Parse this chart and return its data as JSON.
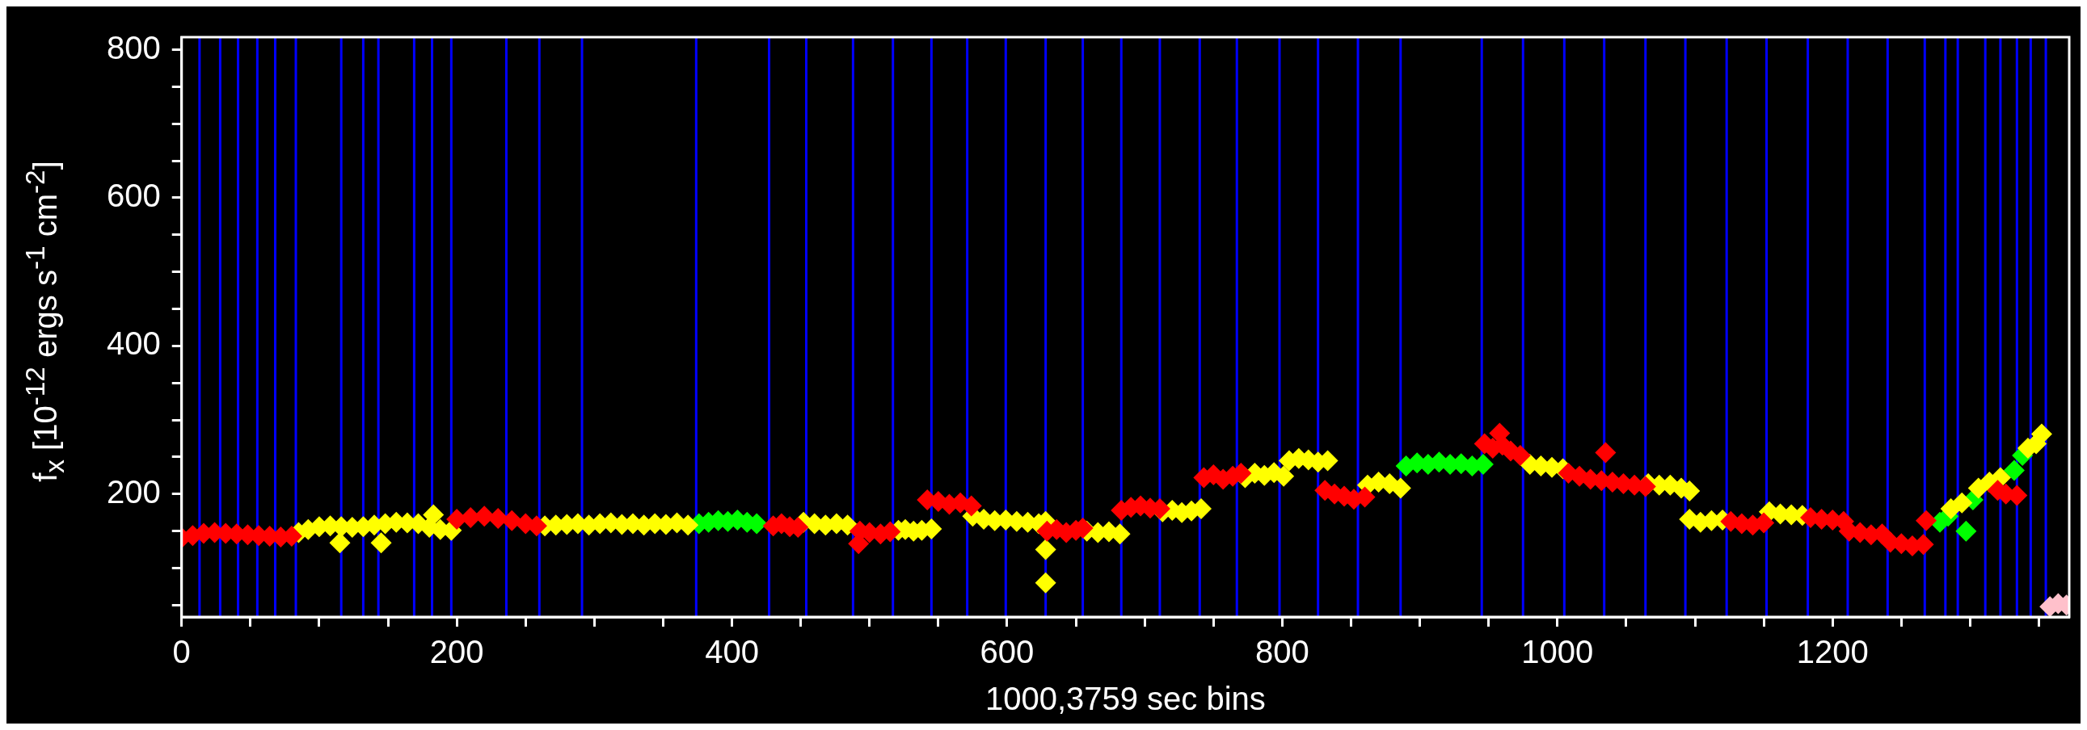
{
  "chart_data": {
    "type": "scatter",
    "xlabel": "1000,3759 sec bins",
    "ylabel": "f$_{x}$ [10$^{-12}$ ergs s$^{-1}$ cm$^{-2}$]",
    "xlim": [
      0,
      1372
    ],
    "ylim": [
      34,
      817
    ],
    "xticks": [
      0,
      {
        "value": 50,
        "label": null
      },
      200,
      {
        "value": 100,
        "label": null
      },
      {
        "value": 150,
        "label": null
      },
      {
        "value": 250,
        "label": null
      },
      {
        "value": 300,
        "label": null
      },
      {
        "value": 350,
        "label": null
      },
      400,
      {
        "value": 450,
        "label": null
      },
      {
        "value": 500,
        "label": null
      },
      {
        "value": 550,
        "label": null
      },
      600,
      {
        "value": 650,
        "label": null
      },
      {
        "value": 700,
        "label": null
      },
      {
        "value": 750,
        "label": null
      },
      800,
      {
        "value": 850,
        "label": null
      },
      {
        "value": 900,
        "label": null
      },
      {
        "value": 950,
        "label": null
      },
      1000,
      {
        "value": 1050,
        "label": null
      },
      {
        "value": 1100,
        "label": null
      },
      {
        "value": 1150,
        "label": null
      },
      1200,
      {
        "value": 1250,
        "label": null
      },
      {
        "value": 1300,
        "label": null
      },
      {
        "value": 1350,
        "label": null
      }
    ],
    "yticks": [
      {
        "value": 50,
        "label": null
      },
      {
        "value": 100,
        "label": null
      },
      {
        "value": 150,
        "label": null
      },
      200,
      {
        "value": 250,
        "label": null
      },
      {
        "value": 300,
        "label": null
      },
      {
        "value": 350,
        "label": null
      },
      400,
      {
        "value": 450,
        "label": null
      },
      {
        "value": 500,
        "label": null
      },
      {
        "value": 550,
        "label": null
      },
      600,
      {
        "value": 650,
        "label": null
      },
      {
        "value": 700,
        "label": null
      },
      {
        "value": 750,
        "label": null
      },
      800
    ],
    "grid": false,
    "legend": false,
    "marker": "diamond",
    "series": [
      {
        "color": "#ff0000",
        "x": [
          0,
          8,
          16,
          24,
          32,
          40,
          48,
          56,
          64,
          72,
          80,
          200,
          210,
          220,
          230,
          240,
          250,
          258,
          430,
          436,
          442,
          448,
          492,
          493,
          500,
          508,
          515,
          542,
          550,
          558,
          566,
          574,
          629,
          636,
          643,
          650,
          655,
          683,
          690,
          697,
          704,
          711,
          743,
          750,
          757,
          764,
          770,
          831,
          838,
          845,
          852,
          860,
          947,
          953,
          958,
          960,
          966,
          973,
          1008,
          1016,
          1024,
          1032,
          1035,
          1040,
          1048,
          1056,
          1064,
          1126,
          1134,
          1142,
          1150,
          1184,
          1192,
          1200,
          1208,
          1212,
          1220,
          1228,
          1236,
          1242,
          1250,
          1258,
          1266,
          1268,
          1320,
          1326,
          1334
        ],
        "values": [
          141,
          144,
          147,
          148,
          147,
          146,
          145,
          144,
          143,
          142,
          143,
          166,
          168,
          170,
          167,
          164,
          160,
          157,
          157,
          160,
          156,
          155,
          133,
          150,
          148,
          146,
          149,
          192,
          190,
          186,
          188,
          184,
          150,
          152,
          148,
          151,
          154,
          178,
          182,
          184,
          181,
          180,
          222,
          226,
          220,
          224,
          228,
          205,
          200,
          197,
          193,
          196,
          268,
          262,
          282,
          266,
          258,
          252,
          228,
          224,
          220,
          218,
          256,
          216,
          214,
          212,
          210,
          163,
          160,
          158,
          161,
          168,
          166,
          165,
          163,
          150,
          148,
          145,
          146,
          135,
          133,
          130,
          132,
          164,
          205,
          200,
          198
        ]
      },
      {
        "color": "#ffff00",
        "x": [
          85,
          92,
          100,
          108,
          115,
          116,
          124,
          132,
          140,
          145,
          148,
          156,
          164,
          172,
          180,
          183,
          188,
          196,
          264,
          272,
          280,
          288,
          296,
          304,
          312,
          320,
          328,
          336,
          344,
          352,
          360,
          368,
          452,
          460,
          468,
          476,
          484,
          521,
          526,
          532,
          538,
          545,
          575,
          583,
          591,
          599,
          607,
          615,
          623,
          628,
          628,
          628,
          658,
          666,
          674,
          682,
          713,
          720,
          727,
          734,
          741,
          773,
          780,
          787,
          794,
          801,
          805,
          812,
          819,
          826,
          833,
          862,
          870,
          878,
          886,
          980,
          988,
          996,
          1004,
          1066,
          1074,
          1082,
          1090,
          1096,
          1096,
          1104,
          1112,
          1120,
          1154,
          1162,
          1170,
          1178,
          1286,
          1294,
          1306,
          1314,
          1322,
          1342,
          1348,
          1352
        ],
        "values": [
          148,
          152,
          156,
          157,
          134,
          156,
          155,
          156,
          158,
          134,
          160,
          162,
          161,
          160,
          155,
          172,
          152,
          151,
          157,
          158,
          159,
          160,
          158,
          160,
          161,
          159,
          160,
          158,
          160,
          159,
          161,
          158,
          162,
          160,
          158,
          160,
          158,
          151,
          152,
          150,
          151,
          153,
          170,
          166,
          164,
          165,
          163,
          162,
          160,
          163,
          125,
          80,
          150,
          148,
          149,
          146,
          176,
          178,
          175,
          177,
          180,
          222,
          228,
          225,
          229,
          224,
          245,
          248,
          246,
          243,
          245,
          212,
          216,
          214,
          208,
          240,
          238,
          236,
          234,
          214,
          212,
          212,
          208,
          204,
          166,
          162,
          164,
          165,
          176,
          173,
          172,
          171,
          180,
          188,
          208,
          216,
          222,
          262,
          268,
          281
        ]
      },
      {
        "color": "#00ff00",
        "x": [
          376,
          383,
          390,
          397,
          404,
          411,
          418,
          890,
          898,
          906,
          914,
          922,
          930,
          938,
          946,
          1278,
          1284,
          1297,
          1302,
          1332,
          1338
        ],
        "values": [
          160,
          162,
          164,
          163,
          165,
          162,
          160,
          238,
          242,
          240,
          243,
          240,
          241,
          238,
          240,
          162,
          170,
          150,
          192,
          232,
          252
        ]
      },
      {
        "color": "#ffc0cb",
        "x": [
          1358,
          1364,
          1370
        ],
        "values": [
          48,
          52,
          50
        ]
      }
    ],
    "ref_lines": [
      {
        "axis": "x",
        "value": 13,
        "color": "#0000ff"
      },
      {
        "axis": "x",
        "value": 28,
        "color": "#0000ff"
      },
      {
        "axis": "x",
        "value": 41,
        "color": "#0000ff"
      },
      {
        "axis": "x",
        "value": 55,
        "color": "#0000ff"
      },
      {
        "axis": "x",
        "value": 68,
        "color": "#0000ff"
      },
      {
        "axis": "x",
        "value": 83,
        "color": "#0000ff"
      },
      {
        "axis": "x",
        "value": 116,
        "color": "#0000ff"
      },
      {
        "axis": "x",
        "value": 132,
        "color": "#0000ff"
      },
      {
        "axis": "x",
        "value": 143,
        "color": "#0000ff"
      },
      {
        "axis": "x",
        "value": 169,
        "color": "#0000ff"
      },
      {
        "axis": "x",
        "value": 182,
        "color": "#0000ff"
      },
      {
        "axis": "x",
        "value": 196,
        "color": "#0000ff"
      },
      {
        "axis": "x",
        "value": 236,
        "color": "#0000ff"
      },
      {
        "axis": "x",
        "value": 260,
        "color": "#0000ff"
      },
      {
        "axis": "x",
        "value": 291,
        "color": "#0000ff"
      },
      {
        "axis": "x",
        "value": 374,
        "color": "#0000ff"
      },
      {
        "axis": "x",
        "value": 427,
        "color": "#0000ff"
      },
      {
        "axis": "x",
        "value": 454,
        "color": "#0000ff"
      },
      {
        "axis": "x",
        "value": 488,
        "color": "#0000ff"
      },
      {
        "axis": "x",
        "value": 517,
        "color": "#0000ff"
      },
      {
        "axis": "x",
        "value": 545,
        "color": "#0000ff"
      },
      {
        "axis": "x",
        "value": 571,
        "color": "#0000ff"
      },
      {
        "axis": "x",
        "value": 599,
        "color": "#0000ff"
      },
      {
        "axis": "x",
        "value": 628,
        "color": "#0000ff"
      },
      {
        "axis": "x",
        "value": 655,
        "color": "#0000ff"
      },
      {
        "axis": "x",
        "value": 683,
        "color": "#0000ff"
      },
      {
        "axis": "x",
        "value": 711,
        "color": "#0000ff"
      },
      {
        "axis": "x",
        "value": 740,
        "color": "#0000ff"
      },
      {
        "axis": "x",
        "value": 767,
        "color": "#0000ff"
      },
      {
        "axis": "x",
        "value": 798,
        "color": "#0000ff"
      },
      {
        "axis": "x",
        "value": 826,
        "color": "#0000ff"
      },
      {
        "axis": "x",
        "value": 855,
        "color": "#0000ff"
      },
      {
        "axis": "x",
        "value": 886,
        "color": "#0000ff"
      },
      {
        "axis": "x",
        "value": 945,
        "color": "#0000ff"
      },
      {
        "axis": "x",
        "value": 975,
        "color": "#0000ff"
      },
      {
        "axis": "x",
        "value": 1005,
        "color": "#0000ff"
      },
      {
        "axis": "x",
        "value": 1034,
        "color": "#0000ff"
      },
      {
        "axis": "x",
        "value": 1064,
        "color": "#0000ff"
      },
      {
        "axis": "x",
        "value": 1093,
        "color": "#0000ff"
      },
      {
        "axis": "x",
        "value": 1123,
        "color": "#0000ff"
      },
      {
        "axis": "x",
        "value": 1152,
        "color": "#0000ff"
      },
      {
        "axis": "x",
        "value": 1182,
        "color": "#0000ff"
      },
      {
        "axis": "x",
        "value": 1211,
        "color": "#0000ff"
      },
      {
        "axis": "x",
        "value": 1240,
        "color": "#0000ff"
      },
      {
        "axis": "x",
        "value": 1267,
        "color": "#0000ff"
      },
      {
        "axis": "x",
        "value": 1282,
        "color": "#0000ff"
      },
      {
        "axis": "x",
        "value": 1291,
        "color": "#0000ff"
      },
      {
        "axis": "x",
        "value": 1311,
        "color": "#0000ff"
      },
      {
        "axis": "x",
        "value": 1322,
        "color": "#0000ff"
      },
      {
        "axis": "x",
        "value": 1334,
        "color": "#0000ff"
      },
      {
        "axis": "x",
        "value": 1344,
        "color": "#0000ff"
      },
      {
        "axis": "x",
        "value": 1355,
        "color": "#0000ff"
      }
    ]
  }
}
